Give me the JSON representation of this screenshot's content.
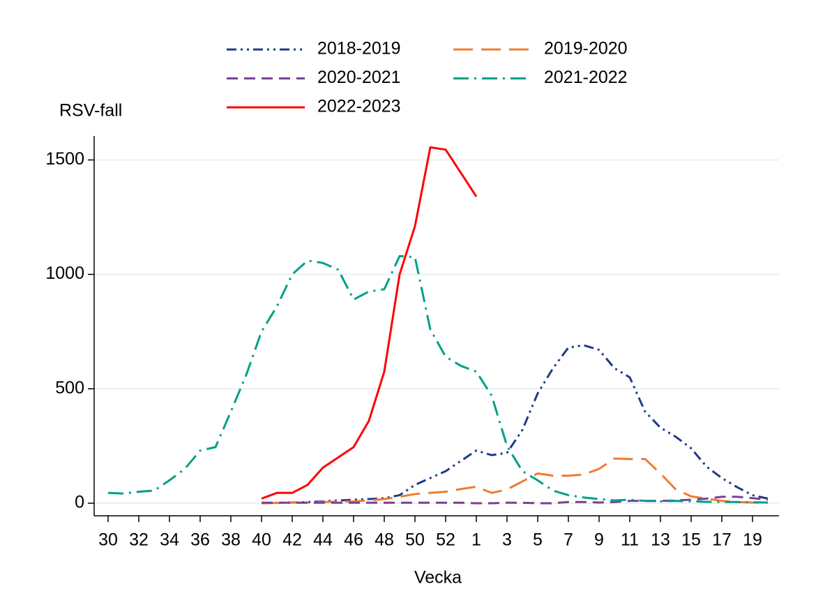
{
  "chart_data": {
    "type": "line",
    "ylabel": "RSV-fall",
    "xlabel": "Vecka",
    "categories": [
      "30",
      null,
      "32",
      null,
      "34",
      null,
      "36",
      null,
      "38",
      null,
      "40",
      null,
      "42",
      null,
      "44",
      null,
      "46",
      null,
      "48",
      null,
      "50",
      null,
      "52",
      null,
      "1",
      null,
      "3",
      null,
      "5",
      null,
      "7",
      null,
      "9",
      null,
      "11",
      null,
      "13",
      null,
      "15",
      null,
      "17",
      null,
      "19",
      null
    ],
    "ylim": [
      -55,
      1605
    ],
    "yticks": [
      0,
      500,
      1000,
      1500
    ],
    "grid": true,
    "series": [
      {
        "name": "2018-2019",
        "color": "#1f3a8a",
        "dash": "dash-dot-dot",
        "values": [
          null,
          null,
          null,
          null,
          null,
          null,
          null,
          null,
          null,
          null,
          0,
          2,
          3,
          5,
          8,
          12,
          15,
          18,
          22,
          35,
          80,
          110,
          140,
          185,
          230,
          210,
          220,
          320,
          480,
          590,
          680,
          690,
          670,
          590,
          550,
          400,
          330,
          290,
          240,
          160,
          110,
          70,
          35,
          20
        ]
      },
      {
        "name": "2019-2020",
        "color": "#ed7d31",
        "dash": "long-dash",
        "values": [
          null,
          null,
          null,
          null,
          null,
          null,
          null,
          null,
          null,
          null,
          0,
          1,
          2,
          3,
          5,
          7,
          8,
          12,
          18,
          28,
          40,
          45,
          50,
          62,
          72,
          45,
          60,
          95,
          130,
          120,
          120,
          125,
          150,
          195,
          193,
          193,
          130,
          60,
          30,
          20,
          10,
          5,
          3,
          2
        ]
      },
      {
        "name": "2020-2021",
        "color": "#7b3f98",
        "dash": "dash",
        "values": [
          null,
          null,
          null,
          null,
          null,
          null,
          null,
          null,
          null,
          null,
          2,
          2,
          2,
          2,
          2,
          2,
          2,
          2,
          2,
          2,
          2,
          2,
          2,
          2,
          0,
          0,
          2,
          2,
          0,
          0,
          5,
          5,
          3,
          5,
          10,
          10,
          10,
          12,
          15,
          20,
          28,
          28,
          22,
          15
        ]
      },
      {
        "name": "2021-2022",
        "color": "#00a087",
        "dash": "dash-dot",
        "values": [
          45,
          42,
          50,
          55,
          100,
          150,
          230,
          245,
          400,
          560,
          750,
          860,
          1000,
          1060,
          1050,
          1020,
          890,
          925,
          935,
          1080,
          1075,
          760,
          640,
          600,
          575,
          470,
          250,
          140,
          100,
          55,
          35,
          25,
          18,
          12,
          15,
          10,
          8,
          10,
          8,
          6,
          5,
          5,
          4,
          3
        ]
      },
      {
        "name": "2022-2023",
        "color": "#ff0000",
        "dash": "solid",
        "values": [
          null,
          null,
          null,
          null,
          null,
          null,
          null,
          null,
          null,
          null,
          20,
          45,
          45,
          80,
          155,
          200,
          245,
          360,
          575,
          1000,
          1210,
          1555,
          1545,
          1443,
          1340,
          null,
          null,
          null,
          null,
          null,
          null,
          null,
          null,
          null,
          null,
          null,
          null,
          null,
          null,
          null,
          null,
          null,
          null,
          null
        ]
      }
    ]
  }
}
